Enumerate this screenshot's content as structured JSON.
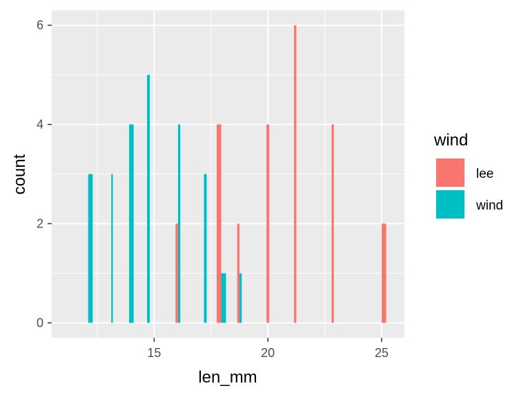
{
  "chart_data": {
    "type": "bar",
    "xlabel": "len_mm",
    "ylabel": "count",
    "xlim": [
      10.5,
      26.0
    ],
    "ylim": [
      -0.3,
      6.3
    ],
    "x_ticks": [
      15,
      20,
      25
    ],
    "y_ticks": [
      0,
      2,
      4,
      6
    ],
    "grid": true,
    "legend": {
      "title": "wind",
      "placement": "right",
      "entries": [
        "lee",
        "wind"
      ]
    },
    "colors": {
      "lee": "#F8766D",
      "wind": "#00BFC4",
      "panel": "#EBEBEB",
      "grid": "#FFFFFF"
    },
    "series": [
      {
        "name": "wind",
        "color": "#00BFC4",
        "bars": [
          {
            "x": 12.2,
            "width": 0.2,
            "value": 3
          },
          {
            "x": 13.15,
            "width": 0.07,
            "value": 3
          },
          {
            "x": 14.0,
            "width": 0.2,
            "value": 4
          },
          {
            "x": 14.75,
            "width": 0.12,
            "value": 5
          },
          {
            "x": 16.1,
            "width": 0.1,
            "value": 4
          },
          {
            "x": 17.25,
            "width": 0.12,
            "value": 3
          },
          {
            "x": 18.05,
            "width": 0.22,
            "value": 1
          },
          {
            "x": 18.8,
            "width": 0.1,
            "value": 1
          }
        ]
      },
      {
        "name": "lee",
        "color": "#F8766D",
        "bars": [
          {
            "x": 16.0,
            "width": 0.12,
            "value": 2
          },
          {
            "x": 17.85,
            "width": 0.2,
            "value": 4
          },
          {
            "x": 18.7,
            "width": 0.1,
            "value": 2
          },
          {
            "x": 20.0,
            "width": 0.12,
            "value": 4
          },
          {
            "x": 21.2,
            "width": 0.1,
            "value": 6
          },
          {
            "x": 22.85,
            "width": 0.1,
            "value": 4
          },
          {
            "x": 25.1,
            "width": 0.2,
            "value": 2
          }
        ]
      }
    ]
  }
}
